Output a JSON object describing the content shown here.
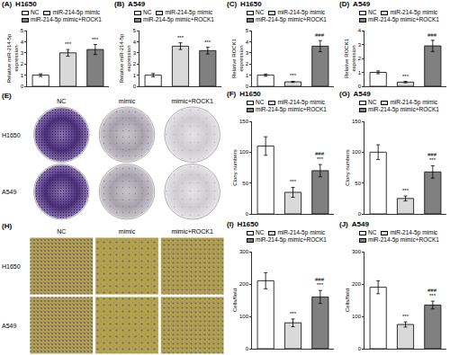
{
  "chart_data": [
    {
      "panel": "(A)",
      "type": "bar",
      "title": "H1650",
      "y_label": [
        "Relative miR-214-5p",
        "expression"
      ],
      "categories": [
        "NC",
        "miR-214-5p mimic",
        "miR-214-5p mimic+ROCK1"
      ],
      "values": [
        1.0,
        3.0,
        3.3
      ],
      "errors": [
        0.12,
        0.3,
        0.45
      ],
      "colors": [
        "#ffffff",
        "#d9d9d9",
        "#808080"
      ],
      "ylim": [
        0,
        5
      ],
      "yticks": [
        0,
        1,
        2,
        3,
        4,
        5
      ],
      "grid": false,
      "legend": "top",
      "tick_labels": "y",
      "annotations": [
        {
          "category": "miR-214-5p mimic",
          "text": "***"
        },
        {
          "category": "miR-214-5p mimic+ROCK1",
          "text": "***"
        }
      ]
    },
    {
      "panel": "(B)",
      "type": "bar",
      "title": "A549",
      "y_label": [
        "Relative miR-214-5p",
        "expression"
      ],
      "categories": [
        "NC",
        "miR-214-5p mimic",
        "miR-214-5p mimic+ROCK1"
      ],
      "values": [
        1.0,
        3.6,
        3.2
      ],
      "errors": [
        0.15,
        0.3,
        0.3
      ],
      "colors": [
        "#ffffff",
        "#d9d9d9",
        "#808080"
      ],
      "ylim": [
        0,
        5
      ],
      "yticks": [
        0,
        1,
        2,
        3,
        4,
        5
      ],
      "grid": false,
      "legend": "top",
      "tick_labels": "y",
      "annotations": [
        {
          "category": "miR-214-5p mimic",
          "text": "***"
        },
        {
          "category": "miR-214-5p mimic+ROCK1",
          "text": "***"
        }
      ]
    },
    {
      "panel": "(C)",
      "type": "bar",
      "title": "H1650",
      "y_label": [
        "Relative ROCK1",
        "expression"
      ],
      "categories": [
        "NC",
        "miR-214-5p mimic",
        "miR-214-5p mimic+ROCK1"
      ],
      "values": [
        1.0,
        0.4,
        3.6
      ],
      "errors": [
        0.1,
        0.05,
        0.5
      ],
      "colors": [
        "#ffffff",
        "#d9d9d9",
        "#808080"
      ],
      "ylim": [
        0,
        5
      ],
      "yticks": [
        0,
        1,
        2,
        3,
        4,
        5
      ],
      "grid": false,
      "legend": "top",
      "tick_labels": "y",
      "annotations": [
        {
          "category": "miR-214-5p mimic",
          "text": "***"
        },
        {
          "category": "miR-214-5p mimic+ROCK1",
          "text": "###"
        }
      ]
    },
    {
      "panel": "(D)",
      "type": "bar",
      "title": "A549",
      "y_label": [
        "Relative ROCK1",
        "expression"
      ],
      "categories": [
        "NC",
        "miR-214-5p mimic",
        "miR-214-5p mimic+ROCK1"
      ],
      "values": [
        1.0,
        0.3,
        2.9
      ],
      "errors": [
        0.1,
        0.05,
        0.4
      ],
      "colors": [
        "#ffffff",
        "#d9d9d9",
        "#808080"
      ],
      "ylim": [
        0,
        4
      ],
      "yticks": [
        0,
        1,
        2,
        3,
        4
      ],
      "grid": false,
      "legend": "top",
      "tick_labels": "y",
      "annotations": [
        {
          "category": "miR-214-5p mimic",
          "text": "***"
        },
        {
          "category": "miR-214-5p mimic+ROCK1",
          "text": "###"
        }
      ]
    },
    {
      "panel": "(F)",
      "type": "bar",
      "title": "H1650",
      "y_label": [
        "Clony numbers"
      ],
      "categories": [
        "NC",
        "miR-214-5p mimic",
        "miR-214-5p mimic+ROCK1"
      ],
      "values": [
        110,
        35,
        70
      ],
      "errors": [
        15,
        8,
        10
      ],
      "colors": [
        "#ffffff",
        "#d9d9d9",
        "#808080"
      ],
      "ylim": [
        0,
        150
      ],
      "yticks": [
        0,
        50,
        100,
        150
      ],
      "grid": false,
      "legend": "top",
      "tick_labels": "y",
      "annotations": [
        {
          "category": "miR-214-5p mimic",
          "text": "***"
        },
        {
          "category": "miR-214-5p mimic+ROCK1",
          "text": "***"
        },
        {
          "category": "miR-214-5p mimic+ROCK1",
          "text": "###"
        }
      ]
    },
    {
      "panel": "(G)",
      "type": "bar",
      "title": "A549",
      "y_label": [
        "Clony numbers"
      ],
      "categories": [
        "NC",
        "miR-214-5p mimic",
        "miR-214-5p mimic+ROCK1"
      ],
      "values": [
        100,
        25,
        68
      ],
      "errors": [
        12,
        4,
        10
      ],
      "colors": [
        "#ffffff",
        "#d9d9d9",
        "#808080"
      ],
      "ylim": [
        0,
        150
      ],
      "yticks": [
        0,
        50,
        100,
        150
      ],
      "grid": false,
      "legend": "top",
      "tick_labels": "y",
      "annotations": [
        {
          "category": "miR-214-5p mimic",
          "text": "***"
        },
        {
          "category": "miR-214-5p mimic+ROCK1",
          "text": "***"
        },
        {
          "category": "miR-214-5p mimic+ROCK1",
          "text": "###"
        }
      ]
    },
    {
      "panel": "(I)",
      "type": "bar",
      "title": "H1650",
      "y_label": [
        "Cells/field"
      ],
      "categories": [
        "NC",
        "miR-214-5p mimic",
        "miR-214-5p mimic+ROCK1"
      ],
      "values": [
        210,
        80,
        160
      ],
      "errors": [
        25,
        12,
        20
      ],
      "colors": [
        "#ffffff",
        "#d9d9d9",
        "#808080"
      ],
      "ylim": [
        0,
        300
      ],
      "yticks": [
        0,
        100,
        200,
        300
      ],
      "grid": false,
      "legend": "top",
      "tick_labels": "y",
      "annotations": [
        {
          "category": "miR-214-5p mimic",
          "text": "***"
        },
        {
          "category": "miR-214-5p mimic+ROCK1",
          "text": "***"
        },
        {
          "category": "miR-214-5p mimic+ROCK1",
          "text": "###"
        }
      ]
    },
    {
      "panel": "(J)",
      "type": "bar",
      "title": "A549",
      "y_label": [
        "Cells/field"
      ],
      "categories": [
        "NC",
        "miR-214-5p mimic",
        "miR-214-5p mimic+ROCK1"
      ],
      "values": [
        190,
        75,
        135
      ],
      "errors": [
        20,
        8,
        12
      ],
      "colors": [
        "#ffffff",
        "#d9d9d9",
        "#808080"
      ],
      "ylim": [
        0,
        300
      ],
      "yticks": [
        0,
        100,
        200,
        300
      ],
      "grid": false,
      "legend": "top",
      "tick_labels": "y",
      "annotations": [
        {
          "category": "miR-214-5p mimic",
          "text": "***"
        },
        {
          "category": "miR-214-5p mimic+ROCK1",
          "text": "***"
        },
        {
          "category": "miR-214-5p mimic+ROCK1",
          "text": "###"
        }
      ]
    }
  ],
  "colony_panel": {
    "panel": "(E)",
    "columns": [
      "NC",
      "mimic",
      "mimic+ROCK1"
    ],
    "rows": [
      "H1650",
      "A549"
    ]
  },
  "transwell_panel": {
    "panel": "(H)",
    "columns": [
      "NC",
      "mimic",
      "mimic+ROCK1"
    ],
    "rows": [
      "H1650",
      "A549"
    ]
  }
}
